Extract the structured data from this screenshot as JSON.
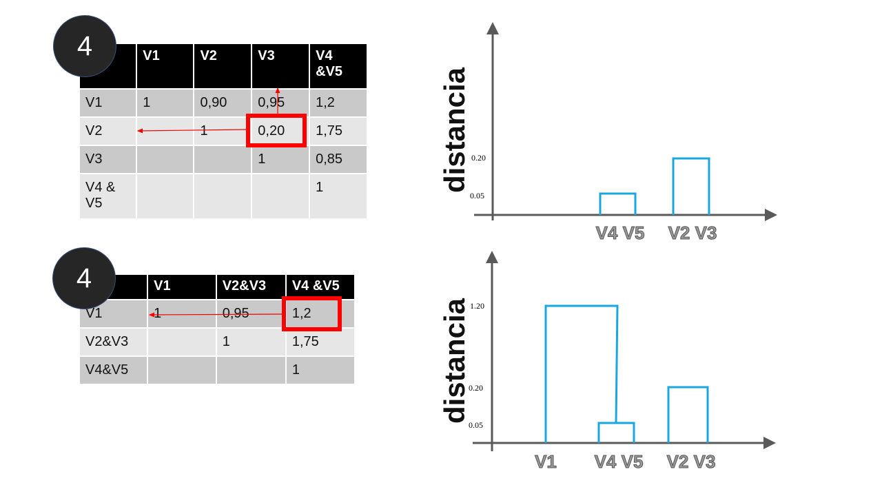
{
  "step1": {
    "badge": "4",
    "table": {
      "headers": [
        "",
        "V1",
        "V2",
        "V3",
        "V4 &V5"
      ],
      "rows": [
        [
          "V1",
          "1",
          "0,90",
          "0,95",
          "1,2"
        ],
        [
          "V2",
          "",
          "1",
          "0,20",
          "1,75"
        ],
        [
          "V3",
          "",
          "",
          "1",
          "0,85"
        ],
        [
          "V4 & V5",
          "",
          "",
          "",
          "1"
        ]
      ],
      "highlighted": "0,20"
    },
    "dendrogram": {
      "ylabel": "distancia",
      "ticks": [
        "0.20",
        "0.05"
      ],
      "leaves": [
        "V4 V5",
        "V2 V3"
      ],
      "merges": [
        {
          "pair": "V4 V5",
          "height": 0.05
        },
        {
          "pair": "V2 V3",
          "height": 0.2
        }
      ]
    }
  },
  "step2": {
    "badge": "4",
    "table": {
      "headers": [
        "",
        "V1",
        "V2&V3",
        "V4 &V5"
      ],
      "rows": [
        [
          "V1",
          "1",
          "0,95",
          "1,2"
        ],
        [
          "V2&V3",
          "",
          "1",
          "1,75"
        ],
        [
          "V4&V5",
          "",
          "",
          "1"
        ]
      ],
      "highlighted": "1,2"
    },
    "dendrogram": {
      "ylabel": "distancia",
      "ticks": [
        "1.20",
        "0.20",
        "0.05"
      ],
      "leaves": [
        "V1",
        "V4 V5",
        "V2 V3"
      ],
      "merges": [
        {
          "pair": "V4 V5",
          "height": 0.05
        },
        {
          "pair": "V2 V3",
          "height": 0.2
        },
        {
          "pair": "V1 + V4V5",
          "height": 1.2
        }
      ]
    }
  },
  "colors": {
    "line": "#1aa7e0",
    "highlight": "#ff0000",
    "axis": "#595959"
  }
}
